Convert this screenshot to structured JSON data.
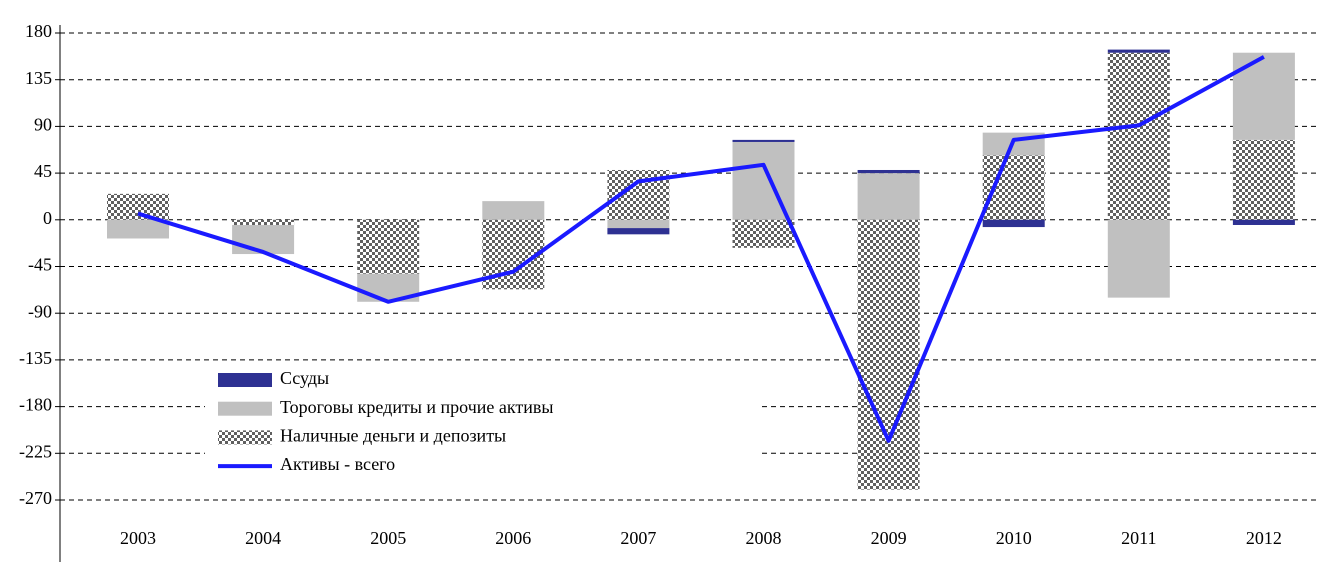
{
  "chart_data": {
    "type": "bar",
    "stacked": true,
    "categories": [
      "2003",
      "2004",
      "2005",
      "2006",
      "2007",
      "2008",
      "2009",
      "2010",
      "2011",
      "2012"
    ],
    "series": [
      {
        "name": "Ссуды",
        "type": "bar",
        "color": "#2e3192",
        "values": [
          0,
          0,
          0,
          0,
          -6,
          2,
          3,
          -7,
          3,
          -5
        ]
      },
      {
        "name": "Тороговы кредиты и прочие активы",
        "type": "bar",
        "color": "#c0c0c0",
        "values": [
          -18,
          -28,
          -27,
          18,
          -8,
          75,
          45,
          22,
          -75,
          84
        ]
      },
      {
        "name": "Наличные деньги и депозиты",
        "type": "bar",
        "color": "#606060",
        "pattern": "checkerboard",
        "values": [
          25,
          -5,
          -52,
          -67,
          48,
          -27,
          -260,
          62,
          161,
          77
        ]
      },
      {
        "name": "Активы - всего",
        "type": "line",
        "color": "#1a1aff",
        "values": [
          6,
          -31,
          -79,
          -50,
          37,
          53,
          -213,
          77,
          91,
          157
        ]
      }
    ],
    "ylim": [
      -270,
      180
    ],
    "yticks": [
      -270,
      -225,
      -180,
      -135,
      -90,
      -45,
      0,
      45,
      90,
      135,
      180
    ],
    "grid": true,
    "legend": "lower left"
  }
}
